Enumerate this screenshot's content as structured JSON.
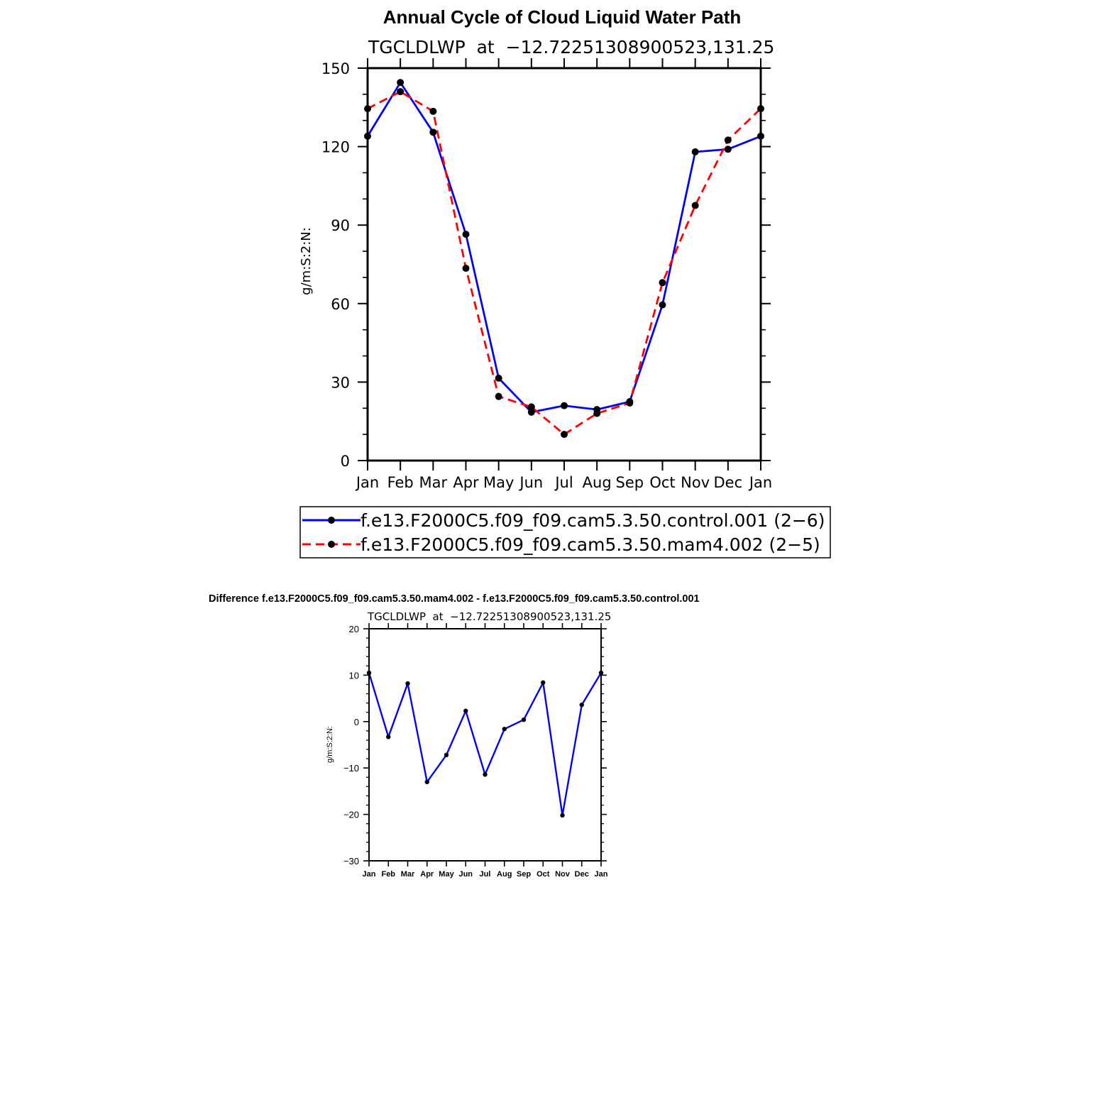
{
  "chart_data": [
    {
      "type": "line",
      "title": "Annual Cycle of Cloud Liquid Water Path",
      "subtitle": "TGCLDLWP  at  −12.72251308900523,131.25",
      "xlabel": "",
      "ylabel": "g/m:S:2:N:",
      "categories": [
        "Jan",
        "Feb",
        "Mar",
        "Apr",
        "May",
        "Jun",
        "Jul",
        "Aug",
        "Sep",
        "Oct",
        "Nov",
        "Dec",
        "Jan"
      ],
      "ylim": [
        0,
        150
      ],
      "yticks": [
        "0",
        "30",
        "60",
        "90",
        "120",
        "150"
      ],
      "grid": false,
      "legend_position": "bottom",
      "series": [
        {
          "name": "f.e13.F2000C5.f09_f09.cam5.3.50.control.001 (2−6)",
          "color": "#0000ff",
          "line_style": "solid",
          "values": [
            124,
            144.5,
            125.5,
            86.5,
            31.5,
            18.5,
            21,
            19.5,
            22.5,
            59.5,
            118,
            119,
            124
          ]
        },
        {
          "name": "f.e13.F2000C5.f09_f09.cam5.3.50.mam4.002 (2−5)",
          "color": "#ff0000",
          "line_style": "dashed",
          "values": [
            134.5,
            141,
            133.5,
            73.5,
            24.5,
            20.5,
            10,
            18,
            22,
            68,
            97.5,
            122.5,
            134.5
          ]
        }
      ]
    },
    {
      "type": "line",
      "title": "Difference f.e13.F2000C5.f09_f09.cam5.3.50.mam4.002 - f.e13.F2000C5.f09_f09.cam5.3.50.control.001",
      "subtitle": "TGCLDLWP  at  −12.72251308900523,131.25",
      "xlabel": "",
      "ylabel": "g/m:S:2:N:",
      "categories": [
        "Jan",
        "Feb",
        "Mar",
        "Apr",
        "May",
        "Jun",
        "Jul",
        "Aug",
        "Sep",
        "Oct",
        "Nov",
        "Dec",
        "Jan"
      ],
      "ylim": [
        -30,
        20
      ],
      "yticks": [
        "−30",
        "−20",
        "−10",
        "0",
        "10",
        "20"
      ],
      "grid": false,
      "series": [
        {
          "color": "#0000ff",
          "line_style": "solid",
          "values": [
            10.5,
            -3.3,
            8.2,
            -13,
            -7.2,
            2.3,
            -11.4,
            -1.6,
            0.4,
            8.4,
            -20.2,
            3.6,
            10.5
          ]
        }
      ]
    }
  ]
}
